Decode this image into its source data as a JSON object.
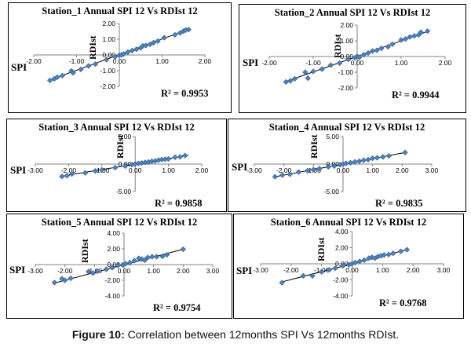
{
  "caption": {
    "label": "Figure 10:",
    "text": " Correlation between 12months SPI Vs 12months RDIst."
  },
  "chart_data": [
    {
      "type": "scatter",
      "title": "Station_1 Annual  SPI 12 Vs RDIst 12",
      "xlabel": "SPI",
      "ylabel": "RDIst",
      "xlim": [
        -2.0,
        2.0
      ],
      "ylim": [
        -2.0,
        2.0
      ],
      "xticks": [
        "-2.00",
        "-1.00",
        "0.00",
        "1.00",
        "2.00"
      ],
      "yticks": [
        "2.00",
        "1.00",
        "0.00",
        "-1.00",
        "-2.00"
      ],
      "r2_label": "R² = 0.9953",
      "trendline": [
        [
          -1.65,
          -1.62
        ],
        [
          1.65,
          1.66
        ]
      ],
      "points": [
        [
          -1.62,
          -1.62
        ],
        [
          -1.52,
          -1.52
        ],
        [
          -1.45,
          -1.42
        ],
        [
          -1.33,
          -1.32
        ],
        [
          -1.12,
          -1.02
        ],
        [
          -1.08,
          -1.14
        ],
        [
          -0.9,
          -0.92
        ],
        [
          -0.72,
          -0.7
        ],
        [
          -0.56,
          -0.58
        ],
        [
          -0.3,
          -0.3
        ],
        [
          -0.1,
          -0.12
        ],
        [
          0.0,
          -0.02
        ],
        [
          0.05,
          0.0
        ],
        [
          0.1,
          0.06
        ],
        [
          0.2,
          0.18
        ],
        [
          0.3,
          0.28
        ],
        [
          0.4,
          0.36
        ],
        [
          0.5,
          0.45
        ],
        [
          0.55,
          0.58
        ],
        [
          0.62,
          0.6
        ],
        [
          0.72,
          0.68
        ],
        [
          0.8,
          0.78
        ],
        [
          0.9,
          0.88
        ],
        [
          1.05,
          1.1
        ],
        [
          1.3,
          1.28
        ],
        [
          1.42,
          1.4
        ],
        [
          1.5,
          1.52
        ],
        [
          1.55,
          1.58
        ],
        [
          1.62,
          1.62
        ]
      ]
    },
    {
      "type": "scatter",
      "title": "Station_2 Annual SPI 12 Vs RDIst 12",
      "xlabel": "SPI",
      "ylabel": "RDIst",
      "xlim": [
        -2.0,
        2.0
      ],
      "ylim": [
        -2.0,
        2.0
      ],
      "xticks": [
        "-2.00",
        "-1.00",
        "0.00",
        "1.00",
        "2.00"
      ],
      "yticks": [
        "2.00",
        "1.00",
        "0.00",
        "-1.00",
        "-2.00"
      ],
      "r2_label": "R² = 0.9944",
      "trendline": [
        [
          -1.65,
          -1.62
        ],
        [
          1.65,
          1.64
        ]
      ],
      "points": [
        [
          -1.62,
          -1.62
        ],
        [
          -1.52,
          -1.55
        ],
        [
          -1.42,
          -1.42
        ],
        [
          -1.18,
          -1.0
        ],
        [
          -1.12,
          -1.38
        ],
        [
          -1.0,
          -0.95
        ],
        [
          -0.8,
          -0.8
        ],
        [
          -0.6,
          -0.55
        ],
        [
          -0.4,
          -0.42
        ],
        [
          -0.2,
          -0.18
        ],
        [
          -0.05,
          -0.08
        ],
        [
          0.0,
          0.02
        ],
        [
          0.05,
          -0.05
        ],
        [
          0.15,
          0.12
        ],
        [
          0.25,
          0.22
        ],
        [
          0.35,
          0.35
        ],
        [
          0.45,
          0.4
        ],
        [
          0.55,
          0.52
        ],
        [
          0.7,
          0.62
        ],
        [
          0.8,
          0.78
        ],
        [
          1.0,
          1.05
        ],
        [
          1.1,
          1.12
        ],
        [
          1.2,
          1.25
        ],
        [
          1.3,
          1.32
        ],
        [
          1.4,
          1.38
        ],
        [
          1.45,
          1.55
        ],
        [
          1.6,
          1.62
        ]
      ]
    },
    {
      "type": "scatter",
      "title": "Station_3 Annual SPI 12 Vs RDIst 12",
      "xlabel": "SPI",
      "ylabel": "RDIst",
      "xlim": [
        -3.0,
        2.0
      ],
      "ylim": [
        -5.0,
        5.0
      ],
      "xticks": [
        "-3.00",
        "-2.00",
        "-1.00",
        "0.00",
        "1.00",
        "2.00"
      ],
      "yticks": [
        "5.00",
        "0.00",
        "-5.00"
      ],
      "r2_label": "R² = 0.9858",
      "trendline": [
        [
          -2.2,
          -2.2
        ],
        [
          1.6,
          1.6
        ]
      ],
      "points": [
        [
          -2.2,
          -2.25
        ],
        [
          -2.05,
          -2.1
        ],
        [
          -1.9,
          -1.8
        ],
        [
          -1.5,
          -1.6
        ],
        [
          -1.2,
          -1.25
        ],
        [
          -1.0,
          -1.05
        ],
        [
          -0.6,
          -0.65
        ],
        [
          -0.3,
          -0.35
        ],
        [
          -0.1,
          -0.1
        ],
        [
          0.0,
          0.02
        ],
        [
          0.1,
          0.12
        ],
        [
          0.2,
          0.2
        ],
        [
          0.3,
          0.3
        ],
        [
          0.4,
          0.38
        ],
        [
          0.5,
          0.5
        ],
        [
          0.6,
          0.58
        ],
        [
          0.7,
          0.72
        ],
        [
          0.8,
          0.82
        ],
        [
          0.9,
          0.88
        ],
        [
          1.0,
          0.95
        ],
        [
          1.2,
          1.25
        ],
        [
          1.35,
          1.32
        ],
        [
          1.5,
          1.55
        ]
      ]
    },
    {
      "type": "scatter",
      "title": "Station_4 Annual SPI 12 Vs RDIst 12",
      "xlabel": "SPI",
      "ylabel": "RDIst",
      "xlim": [
        -3.0,
        3.0
      ],
      "ylim": [
        -5.0,
        5.0
      ],
      "xticks": [
        "-3.00",
        "-2.00",
        "-1.00",
        "0.00",
        "1.00",
        "2.00",
        "3.00"
      ],
      "yticks": [
        "5.00",
        "0.00",
        "-5.00"
      ],
      "r2_label": "R² = 0.9835",
      "trendline": [
        [
          -2.3,
          -2.3
        ],
        [
          2.1,
          2.1
        ]
      ],
      "points": [
        [
          -2.3,
          -2.3
        ],
        [
          -2.05,
          -2.0
        ],
        [
          -1.8,
          -1.85
        ],
        [
          -1.5,
          -1.45
        ],
        [
          -1.2,
          -1.2
        ],
        [
          -1.0,
          -1.0
        ],
        [
          -0.8,
          -0.82
        ],
        [
          -0.5,
          -0.5
        ],
        [
          -0.3,
          -0.35
        ],
        [
          -0.1,
          -0.12
        ],
        [
          0.0,
          0.0
        ],
        [
          0.1,
          0.12
        ],
        [
          0.25,
          0.25
        ],
        [
          0.4,
          0.4
        ],
        [
          0.55,
          0.52
        ],
        [
          0.7,
          0.7
        ],
        [
          0.85,
          0.8
        ],
        [
          1.0,
          1.05
        ],
        [
          1.15,
          1.15
        ],
        [
          1.35,
          1.3
        ],
        [
          1.55,
          1.5
        ],
        [
          2.1,
          2.1
        ]
      ]
    },
    {
      "type": "scatter",
      "title": "Station_5 Annual SPI 12 Vs  RDIst 12",
      "xlabel": "SPI",
      "ylabel": "RDIst",
      "xlim": [
        -3.0,
        3.0
      ],
      "ylim": [
        -4.0,
        4.0
      ],
      "xticks": [
        "-3.00",
        "-2.00",
        "-1.00",
        "0.00",
        "1.00",
        "2.00",
        "3.00"
      ],
      "yticks": [
        "4.00",
        "2.00",
        "0.00",
        "-2.00",
        "-4.00"
      ],
      "r2_label": "R² = 0.9754",
      "trendline": [
        [
          -2.4,
          -2.4
        ],
        [
          2.05,
          2.0
        ]
      ],
      "points": [
        [
          -2.35,
          -2.3
        ],
        [
          -2.1,
          -1.8
        ],
        [
          -2.0,
          -2.0
        ],
        [
          -1.8,
          -1.75
        ],
        [
          -1.2,
          -0.9
        ],
        [
          -1.05,
          -1.1
        ],
        [
          -0.9,
          -0.85
        ],
        [
          -0.6,
          -0.6
        ],
        [
          -0.4,
          -0.4
        ],
        [
          -0.2,
          -0.1
        ],
        [
          -0.05,
          -0.05
        ],
        [
          0.05,
          0.1
        ],
        [
          0.2,
          0.25
        ],
        [
          0.35,
          0.5
        ],
        [
          0.5,
          0.8
        ],
        [
          0.6,
          0.7
        ],
        [
          0.7,
          0.55
        ],
        [
          0.8,
          0.9
        ],
        [
          0.95,
          1.0
        ],
        [
          1.1,
          1.0
        ],
        [
          1.3,
          1.05
        ],
        [
          1.45,
          1.25
        ],
        [
          2.0,
          1.95
        ]
      ]
    },
    {
      "type": "scatter",
      "title": "Station_6 Annual SPI 12 Vs RDIst 12",
      "xlabel": "SPI",
      "ylabel": "RDIst",
      "xlim": [
        -3.0,
        3.0
      ],
      "ylim": [
        -4.0,
        4.0
      ],
      "xticks": [
        "-3.00",
        "-2.00",
        "-1.00",
        "0.00",
        "1.00",
        "2.00",
        "3.00"
      ],
      "yticks": [
        "4.00",
        "2.00",
        "0.00",
        "-2.00",
        "-4.00"
      ],
      "r2_label": "R² = 0.9768",
      "trendline": [
        [
          -2.35,
          -2.3
        ],
        [
          1.85,
          1.8
        ]
      ],
      "points": [
        [
          -2.3,
          -2.35
        ],
        [
          -1.6,
          -1.5
        ],
        [
          -1.3,
          -1.5
        ],
        [
          -1.0,
          -1.0
        ],
        [
          -0.75,
          -0.75
        ],
        [
          -0.55,
          -0.55
        ],
        [
          -0.3,
          -0.25
        ],
        [
          -0.1,
          -0.12
        ],
        [
          0.0,
          0.0
        ],
        [
          0.1,
          0.15
        ],
        [
          0.25,
          0.3
        ],
        [
          0.4,
          0.45
        ],
        [
          0.55,
          0.7
        ],
        [
          0.65,
          0.8
        ],
        [
          0.75,
          0.7
        ],
        [
          0.85,
          0.9
        ],
        [
          0.95,
          1.0
        ],
        [
          1.05,
          1.1
        ],
        [
          1.2,
          1.15
        ],
        [
          1.35,
          1.3
        ],
        [
          1.6,
          1.55
        ],
        [
          1.8,
          1.75
        ]
      ]
    }
  ]
}
